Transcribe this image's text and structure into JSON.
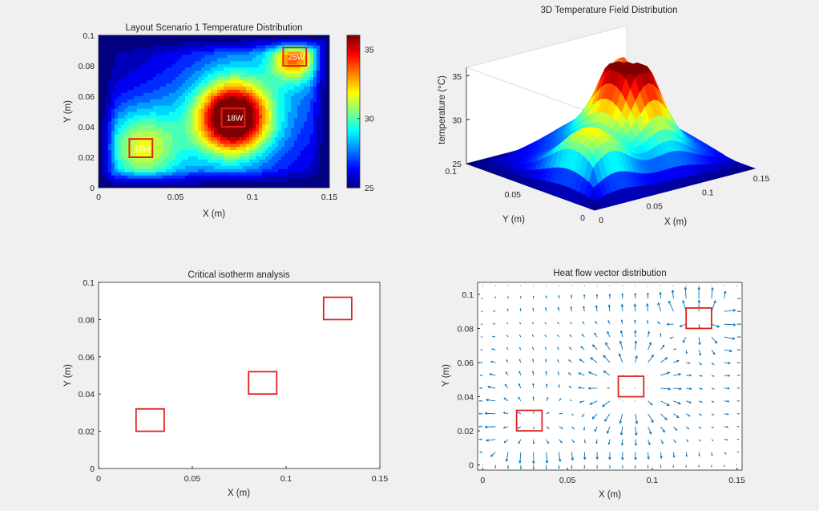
{
  "figure": {
    "background": "#f0f0f0"
  },
  "chart_data": [
    {
      "type": "heatmap",
      "title": "Layout Scenario 1 Temperature Distribution",
      "xlabel": "X (m)",
      "ylabel": "Y (m)",
      "xlim": [
        0,
        0.15
      ],
      "ylim": [
        0,
        0.1
      ],
      "xticks": [
        0,
        0.05,
        0.1,
        0.15
      ],
      "yticks": [
        0,
        0.02,
        0.04,
        0.06,
        0.08,
        0.1
      ],
      "xtick_labels": [
        "0",
        "0.05",
        "0.1",
        "0.15"
      ],
      "ytick_labels": [
        "0",
        "0.02",
        "0.04",
        "0.06",
        "0.08",
        "0.1"
      ],
      "colormap": "jet",
      "clim": [
        25,
        36
      ],
      "colorbar_ticks": [
        25,
        30,
        35
      ],
      "colorbar_labels": [
        "25",
        "30",
        "35"
      ],
      "heat_sources": [
        {
          "label": "15W",
          "x": 0.0275,
          "y": 0.026,
          "w": 0.015,
          "h": 0.012
        },
        {
          "label": "18W",
          "x": 0.0875,
          "y": 0.046,
          "w": 0.015,
          "h": 0.012
        },
        {
          "label": "25W",
          "x": 0.1275,
          "y": 0.086,
          "w": 0.015,
          "h": 0.012
        }
      ]
    },
    {
      "type": "surface",
      "title": "3D Temperature Field Distribution",
      "xlabel": "X (m)",
      "ylabel": "Y (m)",
      "zlabel": "temperature (°C)",
      "xticks": [
        0,
        0.05,
        0.1,
        0.15
      ],
      "xtick_labels": [
        "0",
        "0.05",
        "0.1",
        "0.15"
      ],
      "yticks": [
        0,
        0.05,
        0.1
      ],
      "ytick_labels": [
        "0",
        "0.05",
        "0.1"
      ],
      "zticks": [
        25,
        30,
        35
      ],
      "ztick_labels": [
        "25",
        "30",
        "35"
      ],
      "zlim": [
        25,
        36
      ],
      "colormap": "jet"
    },
    {
      "type": "contour",
      "title": "Critical isotherm analysis",
      "xlabel": "X (m)",
      "ylabel": "Y (m)",
      "xlim": [
        0,
        0.15
      ],
      "ylim": [
        0,
        0.1
      ],
      "xticks": [
        0,
        0.05,
        0.1,
        0.15
      ],
      "xtick_labels": [
        "0",
        "0.05",
        "0.1",
        "0.15"
      ],
      "yticks": [
        0,
        0.02,
        0.04,
        0.06,
        0.08,
        0.1
      ],
      "ytick_labels": [
        "0",
        "0.02",
        "0.04",
        "0.06",
        "0.08",
        "0.1"
      ],
      "heat_sources": [
        {
          "x": 0.0275,
          "y": 0.026,
          "w": 0.015,
          "h": 0.012
        },
        {
          "x": 0.0875,
          "y": 0.046,
          "w": 0.015,
          "h": 0.012
        },
        {
          "x": 0.1275,
          "y": 0.086,
          "w": 0.015,
          "h": 0.012
        }
      ]
    },
    {
      "type": "quiver",
      "title": "Heat flow vector distribution",
      "xlabel": "X (m)",
      "ylabel": "Y (m)",
      "xlim": [
        -0.003,
        0.153
      ],
      "ylim": [
        -0.003,
        0.107
      ],
      "xticks": [
        0,
        0.05,
        0.1,
        0.15
      ],
      "xtick_labels": [
        "0",
        "0.05",
        "0.1",
        "0.15"
      ],
      "yticks": [
        0,
        0.02,
        0.04,
        0.06,
        0.08,
        0.1
      ],
      "ytick_labels": [
        "0",
        "0.02",
        "0.04",
        "0.06",
        "0.08",
        "0.1"
      ],
      "arrow_color": "#0072bd",
      "heat_sources": [
        {
          "x": 0.0275,
          "y": 0.026,
          "w": 0.015,
          "h": 0.012
        },
        {
          "x": 0.0875,
          "y": 0.046,
          "w": 0.015,
          "h": 0.012
        },
        {
          "x": 0.1275,
          "y": 0.086,
          "w": 0.015,
          "h": 0.012
        }
      ]
    }
  ]
}
